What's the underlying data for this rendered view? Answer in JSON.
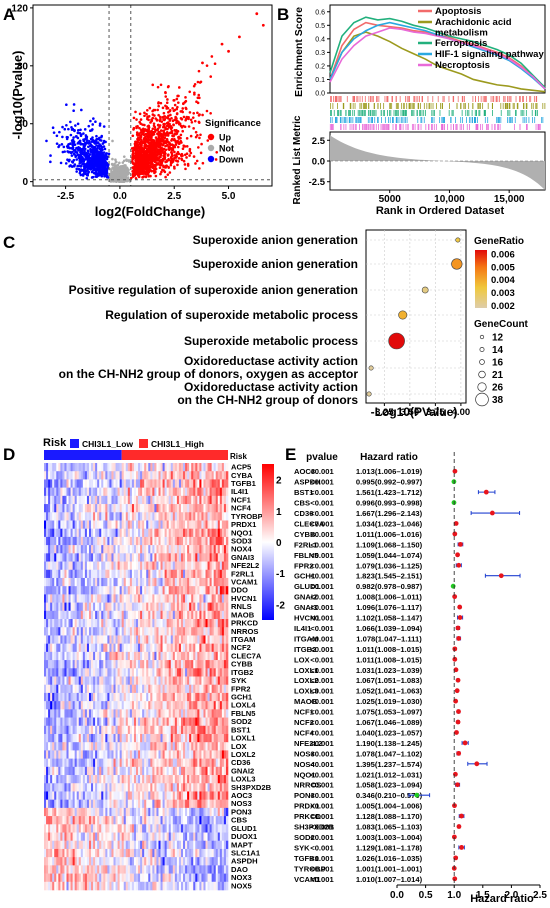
{
  "panels": {
    "A": {
      "letter": "A",
      "chart_data": {
        "type": "scatter",
        "xlabel": "log2(FoldChange)",
        "ylabel": "-log10(Pvalue)",
        "xlim": [
          -4,
          7
        ],
        "ylim": [
          -3,
          122
        ],
        "xticks": [
          "-2.5",
          "0.0",
          "2.5",
          "5.0"
        ],
        "xtick_values": [
          -2.5,
          0,
          2.5,
          5
        ],
        "yticks": [
          "0",
          "40",
          "80",
          "120"
        ],
        "ytick_values": [
          0,
          40,
          80,
          120
        ],
        "vlines": [
          -0.5,
          0.5
        ],
        "hline": 1.3,
        "legend_title": "Significance",
        "legend": [
          {
            "name": "Up",
            "color": "#ff0000"
          },
          {
            "name": "Not",
            "color": "#aaaaaa"
          },
          {
            "name": "Down",
            "color": "#0000ff"
          }
        ],
        "highlight_points": [
          [
            6.3,
            116
          ],
          [
            6.6,
            108
          ],
          [
            5.5,
            100
          ],
          [
            4.7,
            95
          ],
          [
            5.0,
            90
          ],
          [
            3.8,
            82
          ]
        ]
      }
    },
    "B": {
      "letter": "B",
      "chart_data": {
        "type": "line",
        "ylabel_top": "Enrichment Score",
        "ylabel_bottom": "Ranked List Metric",
        "xlabel": "Rank in Ordered Dataset",
        "xlim": [
          0,
          18000
        ],
        "xticks": [
          "5000",
          "10,000",
          "15,000"
        ],
        "xtick_values": [
          5000,
          10000,
          15000
        ],
        "es_ylim": [
          0,
          0.65
        ],
        "es_yticks": [
          "0.0",
          "0.1",
          "0.2",
          "0.3",
          "0.4",
          "0.5",
          "0.6"
        ],
        "es_ytick_values": [
          0,
          0.1,
          0.2,
          0.3,
          0.4,
          0.5,
          0.6
        ],
        "metric_ylim": [
          -3.5,
          3.5
        ],
        "metric_yticks": [
          "2.5",
          "0.0",
          "-2.5"
        ],
        "metric_ytick_values": [
          2.5,
          0,
          -2.5
        ],
        "x": [
          0,
          1000,
          2000,
          3000,
          4000,
          5000,
          6000,
          7000,
          8000,
          9000,
          10000,
          11000,
          12000,
          13000,
          14000,
          15000,
          16000,
          17000,
          18000
        ],
        "series": [
          {
            "name": "Apoptosis",
            "color": "#f26b6b",
            "values": [
              0.1,
              0.35,
              0.47,
              0.52,
              0.5,
              0.49,
              0.48,
              0.46,
              0.45,
              0.43,
              0.41,
              0.38,
              0.36,
              0.33,
              0.3,
              0.26,
              0.2,
              0.12,
              0.03
            ]
          },
          {
            "name": "Arachidonic acid metabolism",
            "color": "#9c9a1e",
            "values": [
              0.1,
              0.3,
              0.42,
              0.45,
              0.42,
              0.38,
              0.33,
              0.29,
              0.25,
              0.2,
              0.17,
              0.14,
              0.1,
              0.08,
              0.06,
              0.05,
              0.03,
              0.02,
              0.01
            ]
          },
          {
            "name": "Ferroptosis",
            "color": "#22b07d",
            "values": [
              0.15,
              0.42,
              0.52,
              0.56,
              0.54,
              0.55,
              0.53,
              0.5,
              0.48,
              0.45,
              0.42,
              0.4,
              0.38,
              0.35,
              0.32,
              0.28,
              0.22,
              0.13,
              0.04
            ]
          },
          {
            "name": "HIF-1 signaling pathway",
            "color": "#2aa8e0",
            "values": [
              0.1,
              0.3,
              0.4,
              0.46,
              0.5,
              0.52,
              0.5,
              0.48,
              0.46,
              0.43,
              0.4,
              0.37,
              0.34,
              0.31,
              0.28,
              0.24,
              0.18,
              0.11,
              0.03
            ]
          },
          {
            "name": "Necroptosis",
            "color": "#e86ad8",
            "values": [
              0.08,
              0.25,
              0.35,
              0.42,
              0.45,
              0.48,
              0.47,
              0.45,
              0.44,
              0.42,
              0.4,
              0.37,
              0.35,
              0.32,
              0.29,
              0.25,
              0.19,
              0.12,
              0.03
            ]
          }
        ]
      }
    },
    "C": {
      "letter": "C",
      "chart_data": {
        "type": "scatter",
        "subtype": "bubble",
        "xlabel": "-Log10(PValue)",
        "xlim": [
          3.07,
          4.05
        ],
        "xticks": [
          "3.25",
          "3.50",
          "3.75",
          "4.00"
        ],
        "xtick_values": [
          3.25,
          3.5,
          3.75,
          4.0
        ],
        "categories": [
          "Superoxide anion generation",
          "Superoxide anion generation",
          "Positive regulation of superoxide anion generation",
          "Regulation of superoxide metabolic process",
          "Superoxide metabolic process",
          "Oxidoreductase activity action\non the CH-NH2 group of donors, oxygen as acceptor",
          "Oxidoreductase activity action\non the CH-NH2 group of donors"
        ],
        "x": [
          3.97,
          3.96,
          3.65,
          3.43,
          3.37,
          3.12,
          3.1
        ],
        "gene_ratio": [
          0.0033,
          0.0043,
          0.0025,
          0.0038,
          0.0062,
          0.0022,
          0.0022
        ],
        "gene_count": [
          12,
          26,
          16,
          21,
          38,
          12,
          12
        ],
        "colorbar_title": "GeneRatio",
        "colorbar_ticks": [
          "0.006",
          "0.005",
          "0.004",
          "0.003",
          "0.002"
        ],
        "colorbar_tick_values": [
          0.006,
          0.005,
          0.004,
          0.003,
          0.002
        ],
        "size_title": "GeneCount",
        "size_legend": [
          "12",
          "14",
          "16",
          "21",
          "26",
          "38"
        ],
        "size_legend_values": [
          12,
          14,
          16,
          21,
          26,
          38
        ]
      }
    },
    "D": {
      "letter": "D",
      "chart_data": {
        "type": "heatmap",
        "annotation_title": "Risk",
        "annotation_row_label": "Risk",
        "groups": [
          {
            "name": "CHI3L1_Low",
            "color": "#1a1aff"
          },
          {
            "name": "CHI3L1_High",
            "color": "#ff2a2a"
          }
        ],
        "genes": [
          "ACP5",
          "CYBA",
          "TGFB1",
          "IL4I1",
          "NCF1",
          "NCF4",
          "TYROBP",
          "PRDX1",
          "NQO1",
          "SOD3",
          "NOX4",
          "GNAI3",
          "NFE2L2",
          "F2RL1",
          "VCAM1",
          "DDO",
          "HVCN1",
          "RNLS",
          "MAOB",
          "PRKCD",
          "NRROS",
          "ITGAM",
          "NCF2",
          "CLEC7A",
          "CYBB",
          "ITGB2",
          "SYK",
          "FPR2",
          "GCH1",
          "LOXL4",
          "FBLN5",
          "SOD2",
          "BST1",
          "LOXL1",
          "LOX",
          "LOXL2",
          "CD36",
          "GNAI2",
          "LOXL3",
          "SH3PXD2B",
          "AOC3",
          "NOS3",
          "PON3",
          "CBS",
          "GLUD1",
          "DUOX1",
          "MAPT",
          "SLC1A1",
          "ASPDH",
          "DAO",
          "NOX3",
          "NOX5"
        ],
        "colorbar_ticks": [
          "2",
          "1",
          "0",
          "-1",
          "-2"
        ],
        "colorbar_tick_values": [
          2,
          1,
          0,
          -1,
          -2
        ]
      }
    },
    "E": {
      "letter": "E",
      "chart_data": {
        "type": "forest",
        "col_pvalue": "pvalue",
        "col_hr": "Hazard ratio",
        "xlabel": "Hazard ratio",
        "xlim": [
          0,
          2.5
        ],
        "xticks": [
          "0.0",
          "0.5",
          "1.0",
          "1.5",
          "2.0",
          "2.5"
        ],
        "xtick_values": [
          0,
          0.5,
          1.0,
          1.5,
          2.0,
          2.5
        ],
        "reference": 1.0,
        "rows": [
          {
            "gene": "AOC3",
            "pvalue": "<0.001",
            "hr_text": "1.013(1.006–1.019)",
            "hr": 1.013,
            "lo": 1.006,
            "hi": 1.019
          },
          {
            "gene": "ASPDH",
            "pvalue": "<0.001",
            "hr_text": "0.995(0.992–0.997)",
            "hr": 0.995,
            "lo": 0.992,
            "hi": 0.997
          },
          {
            "gene": "BST1",
            "pvalue": "<0.001",
            "hr_text": "1.561(1.423–1.712)",
            "hr": 1.561,
            "lo": 1.423,
            "hi": 1.712
          },
          {
            "gene": "CBS",
            "pvalue": "<0.001",
            "hr_text": "0.996(0.993–0.998)",
            "hr": 0.996,
            "lo": 0.993,
            "hi": 0.998
          },
          {
            "gene": "CD36",
            "pvalue": "<0.001",
            "hr_text": "1.667(1.296–2.143)",
            "hr": 1.667,
            "lo": 1.296,
            "hi": 2.143
          },
          {
            "gene": "CLEC7A",
            "pvalue": "<0.001",
            "hr_text": "1.034(1.023–1.046)",
            "hr": 1.034,
            "lo": 1.023,
            "hi": 1.046
          },
          {
            "gene": "CYBB",
            "pvalue": "<0.001",
            "hr_text": "1.011(1.006–1.016)",
            "hr": 1.011,
            "lo": 1.006,
            "hi": 1.016
          },
          {
            "gene": "F2RL1",
            "pvalue": "<0.001",
            "hr_text": "1.109(1.068–1.150)",
            "hr": 1.109,
            "lo": 1.068,
            "hi": 1.15
          },
          {
            "gene": "FBLN5",
            "pvalue": "<0.001",
            "hr_text": "1.059(1.044–1.074)",
            "hr": 1.059,
            "lo": 1.044,
            "hi": 1.074
          },
          {
            "gene": "FPR2",
            "pvalue": "<0.001",
            "hr_text": "1.079(1.036–1.125)",
            "hr": 1.079,
            "lo": 1.036,
            "hi": 1.125
          },
          {
            "gene": "GCH1",
            "pvalue": "<0.001",
            "hr_text": "1.823(1.545–2.151)",
            "hr": 1.823,
            "lo": 1.545,
            "hi": 2.151
          },
          {
            "gene": "GLUD1",
            "pvalue": "<0.001",
            "hr_text": "0.982(0.978–0.987)",
            "hr": 0.982,
            "lo": 0.978,
            "hi": 0.987
          },
          {
            "gene": "GNAI2",
            "pvalue": "<0.001",
            "hr_text": "1.008(1.006–1.011)",
            "hr": 1.008,
            "lo": 1.006,
            "hi": 1.011
          },
          {
            "gene": "GNAI3",
            "pvalue": "<0.001",
            "hr_text": "1.096(1.076–1.117)",
            "hr": 1.096,
            "lo": 1.076,
            "hi": 1.117
          },
          {
            "gene": "HVCN1",
            "pvalue": "<0.001",
            "hr_text": "1.102(1.058–1.147)",
            "hr": 1.102,
            "lo": 1.058,
            "hi": 1.147
          },
          {
            "gene": "IL4I1",
            "pvalue": "<0.001",
            "hr_text": "1.066(1.039–1.094)",
            "hr": 1.066,
            "lo": 1.039,
            "hi": 1.094
          },
          {
            "gene": "ITGAM",
            "pvalue": "<0.001",
            "hr_text": "1.078(1.047–1.111)",
            "hr": 1.078,
            "lo": 1.047,
            "hi": 1.111
          },
          {
            "gene": "ITGB2",
            "pvalue": "<0.001",
            "hr_text": "1.011(1.008–1.015)",
            "hr": 1.011,
            "lo": 1.008,
            "hi": 1.015
          },
          {
            "gene": "LOX",
            "pvalue": "<0.001",
            "hr_text": "1.011(1.008–1.015)",
            "hr": 1.011,
            "lo": 1.008,
            "hi": 1.015
          },
          {
            "gene": "LOXL1",
            "pvalue": "<0.001",
            "hr_text": "1.031(1.023–1.039)",
            "hr": 1.031,
            "lo": 1.023,
            "hi": 1.039
          },
          {
            "gene": "LOXL2",
            "pvalue": "<0.001",
            "hr_text": "1.067(1.051–1.083)",
            "hr": 1.067,
            "lo": 1.051,
            "hi": 1.083
          },
          {
            "gene": "LOXL3",
            "pvalue": "<0.001",
            "hr_text": "1.052(1.041–1.063)",
            "hr": 1.052,
            "lo": 1.041,
            "hi": 1.063
          },
          {
            "gene": "MAOB",
            "pvalue": "<0.001",
            "hr_text": "1.025(1.019–1.030)",
            "hr": 1.025,
            "lo": 1.019,
            "hi": 1.03
          },
          {
            "gene": "NCF1",
            "pvalue": "<0.001",
            "hr_text": "1.075(1.053–1.097)",
            "hr": 1.075,
            "lo": 1.053,
            "hi": 1.097
          },
          {
            "gene": "NCF2",
            "pvalue": "<0.001",
            "hr_text": "1.067(1.046–1.089)",
            "hr": 1.067,
            "lo": 1.046,
            "hi": 1.089
          },
          {
            "gene": "NCF4",
            "pvalue": "<0.001",
            "hr_text": "1.040(1.023–1.057)",
            "hr": 1.04,
            "lo": 1.023,
            "hi": 1.057
          },
          {
            "gene": "NFE2L2",
            "pvalue": "<0.001",
            "hr_text": "1.190(1.138–1.245)",
            "hr": 1.19,
            "lo": 1.138,
            "hi": 1.245
          },
          {
            "gene": "NOS3",
            "pvalue": "<0.001",
            "hr_text": "1.078(1.047–1.102)",
            "hr": 1.078,
            "lo": 1.047,
            "hi": 1.102
          },
          {
            "gene": "NOS4",
            "pvalue": "<0.001",
            "hr_text": "1.395(1.237–1.574)",
            "hr": 1.395,
            "lo": 1.237,
            "hi": 1.574
          },
          {
            "gene": "NQO1",
            "pvalue": "<0.001",
            "hr_text": "1.021(1.012–1.031)",
            "hr": 1.021,
            "lo": 1.012,
            "hi": 1.031
          },
          {
            "gene": "NRROS",
            "pvalue": "<0.001",
            "hr_text": "1.058(1.023–1.094)",
            "hr": 1.058,
            "lo": 1.023,
            "hi": 1.094
          },
          {
            "gene": "PON3",
            "pvalue": "<0.001",
            "hr_text": "0.346(0.210–0.570)",
            "hr": 0.346,
            "lo": 0.21,
            "hi": 0.57
          },
          {
            "gene": "PRDX1",
            "pvalue": "<0.001",
            "hr_text": "1.005(1.004–1.006)",
            "hr": 1.005,
            "lo": 1.004,
            "hi": 1.006
          },
          {
            "gene": "PRKCD",
            "pvalue": "<0.001",
            "hr_text": "1.128(1.088–1.170)",
            "hr": 1.128,
            "lo": 1.088,
            "hi": 1.17
          },
          {
            "gene": "SH3PXD2B",
            "pvalue": "<0.001",
            "hr_text": "1.083(1.065–1.103)",
            "hr": 1.083,
            "lo": 1.065,
            "hi": 1.103
          },
          {
            "gene": "SOD2",
            "pvalue": "<0.001",
            "hr_text": "1.003(1.003–1.004)",
            "hr": 1.003,
            "lo": 1.003,
            "hi": 1.004
          },
          {
            "gene": "SYK",
            "pvalue": "<0.001",
            "hr_text": "1.129(1.081–1.178)",
            "hr": 1.129,
            "lo": 1.081,
            "hi": 1.178
          },
          {
            "gene": "TGFB1",
            "pvalue": "<0.001",
            "hr_text": "1.026(1.016–1.035)",
            "hr": 1.026,
            "lo": 1.016,
            "hi": 1.035
          },
          {
            "gene": "TYROBP",
            "pvalue": "<0.001",
            "hr_text": "1.001(1.001–1.001)",
            "hr": 1.001,
            "lo": 1.001,
            "hi": 1.001
          },
          {
            "gene": "VCAM1",
            "pvalue": "<0.001",
            "hr_text": "1.010(1.007–1.014)",
            "hr": 1.01,
            "lo": 1.007,
            "hi": 1.014
          }
        ],
        "colors": {
          "risk": "#e8141c",
          "protective": "#22cc22",
          "ci": "#2040d0"
        }
      }
    }
  }
}
